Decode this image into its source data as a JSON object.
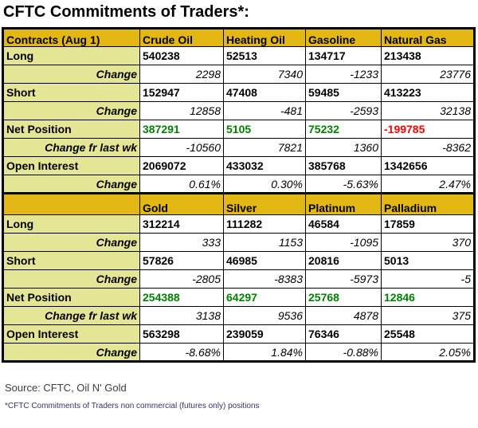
{
  "title": "CFTC Commitments of Traders*:",
  "colors": {
    "header_bg": "#e3b714",
    "label_bg": "#e5e596",
    "positive": "#008000",
    "negative": "#ff0000"
  },
  "tables": [
    {
      "name": "energy-table",
      "columns": [
        "Contracts (Aug 1)",
        "Crude Oil",
        "Heating Oil",
        "Gasoline",
        "Natural Gas"
      ],
      "tall_header": false,
      "rows": [
        {
          "label": "Long",
          "style": "value",
          "cells": [
            "540238",
            "52513",
            "134717",
            "213438"
          ]
        },
        {
          "label": "Change",
          "style": "change",
          "cells": [
            "2298",
            "7340",
            "-1233",
            "23776"
          ]
        },
        {
          "label": "Short",
          "style": "value",
          "cells": [
            "152947",
            "47408",
            "59485",
            "413223"
          ]
        },
        {
          "label": "Change",
          "style": "change",
          "cells": [
            "12858",
            "-481",
            "-2593",
            "32138"
          ]
        },
        {
          "label": "Net Position",
          "style": "net",
          "cells": [
            "387291",
            "5105",
            "75232",
            "-199785"
          ]
        },
        {
          "label": "Change fr last wk",
          "style": "change",
          "cells": [
            "-10560",
            "7821",
            "1360",
            "-8362"
          ]
        },
        {
          "label": "Open Interest",
          "style": "value",
          "cells": [
            "2069072",
            "433032",
            "385768",
            "1342656"
          ]
        },
        {
          "label": "Change",
          "style": "change",
          "cells": [
            "0.61%",
            "0.30%",
            "-5.63%",
            "2.47%"
          ]
        }
      ]
    },
    {
      "name": "metals-table",
      "columns": [
        "",
        "Gold",
        "Silver",
        "Platinum",
        "Palladium"
      ],
      "tall_header": true,
      "rows": [
        {
          "label": "Long",
          "style": "value",
          "cells": [
            "312214",
            "111282",
            "46584",
            "17859"
          ]
        },
        {
          "label": "Change",
          "style": "change",
          "cells": [
            "333",
            "1153",
            "-1095",
            "370"
          ]
        },
        {
          "label": "Short",
          "style": "value",
          "cells": [
            "57826",
            "46985",
            "20816",
            "5013"
          ]
        },
        {
          "label": "Change",
          "style": "change",
          "cells": [
            "-2805",
            "-8383",
            "-5973",
            "-5"
          ]
        },
        {
          "label": "Net Position",
          "style": "net",
          "cells": [
            "254388",
            "64297",
            "25768",
            "12846"
          ]
        },
        {
          "label": "Change fr last wk",
          "style": "change",
          "cells": [
            "3138",
            "9536",
            "4878",
            "375"
          ]
        },
        {
          "label": "Open Interest",
          "style": "value",
          "cells": [
            "563298",
            "239059",
            "76346",
            "25548"
          ]
        },
        {
          "label": "Change",
          "style": "change",
          "cells": [
            "-8.68%",
            "1.84%",
            "-0.88%",
            "2.05%"
          ]
        }
      ]
    }
  ],
  "footer": {
    "source": "Source: CFTC, Oil N' Gold",
    "footnote": "*CFTC Commitments of Traders non commercial (futures only) positions"
  },
  "chart_data": [
    {
      "type": "table",
      "title": "CFTC Commitments of Traders (Aug 1) - Energy",
      "columns": [
        "Crude Oil",
        "Heating Oil",
        "Gasoline",
        "Natural Gas"
      ],
      "series": [
        {
          "name": "Long",
          "values": [
            540238,
            52513,
            134717,
            213438
          ]
        },
        {
          "name": "Long Change",
          "values": [
            2298,
            7340,
            -1233,
            23776
          ]
        },
        {
          "name": "Short",
          "values": [
            152947,
            47408,
            59485,
            413223
          ]
        },
        {
          "name": "Short Change",
          "values": [
            12858,
            -481,
            -2593,
            32138
          ]
        },
        {
          "name": "Net Position",
          "values": [
            387291,
            5105,
            75232,
            -199785
          ]
        },
        {
          "name": "Change fr last wk",
          "values": [
            -10560,
            7821,
            1360,
            -8362
          ]
        },
        {
          "name": "Open Interest",
          "values": [
            2069072,
            433032,
            385768,
            1342656
          ]
        },
        {
          "name": "Open Interest Change %",
          "values": [
            0.61,
            0.3,
            -5.63,
            2.47
          ]
        }
      ]
    },
    {
      "type": "table",
      "title": "CFTC Commitments of Traders (Aug 1) - Metals",
      "columns": [
        "Gold",
        "Silver",
        "Platinum",
        "Palladium"
      ],
      "series": [
        {
          "name": "Long",
          "values": [
            312214,
            111282,
            46584,
            17859
          ]
        },
        {
          "name": "Long Change",
          "values": [
            333,
            1153,
            -1095,
            370
          ]
        },
        {
          "name": "Short",
          "values": [
            57826,
            46985,
            20816,
            5013
          ]
        },
        {
          "name": "Short Change",
          "values": [
            -2805,
            -8383,
            -5973,
            -5
          ]
        },
        {
          "name": "Net Position",
          "values": [
            254388,
            64297,
            25768,
            12846
          ]
        },
        {
          "name": "Change fr last wk",
          "values": [
            3138,
            9536,
            4878,
            375
          ]
        },
        {
          "name": "Open Interest",
          "values": [
            563298,
            239059,
            76346,
            25548
          ]
        },
        {
          "name": "Open Interest Change %",
          "values": [
            -8.68,
            1.84,
            -0.88,
            2.05
          ]
        }
      ]
    }
  ]
}
